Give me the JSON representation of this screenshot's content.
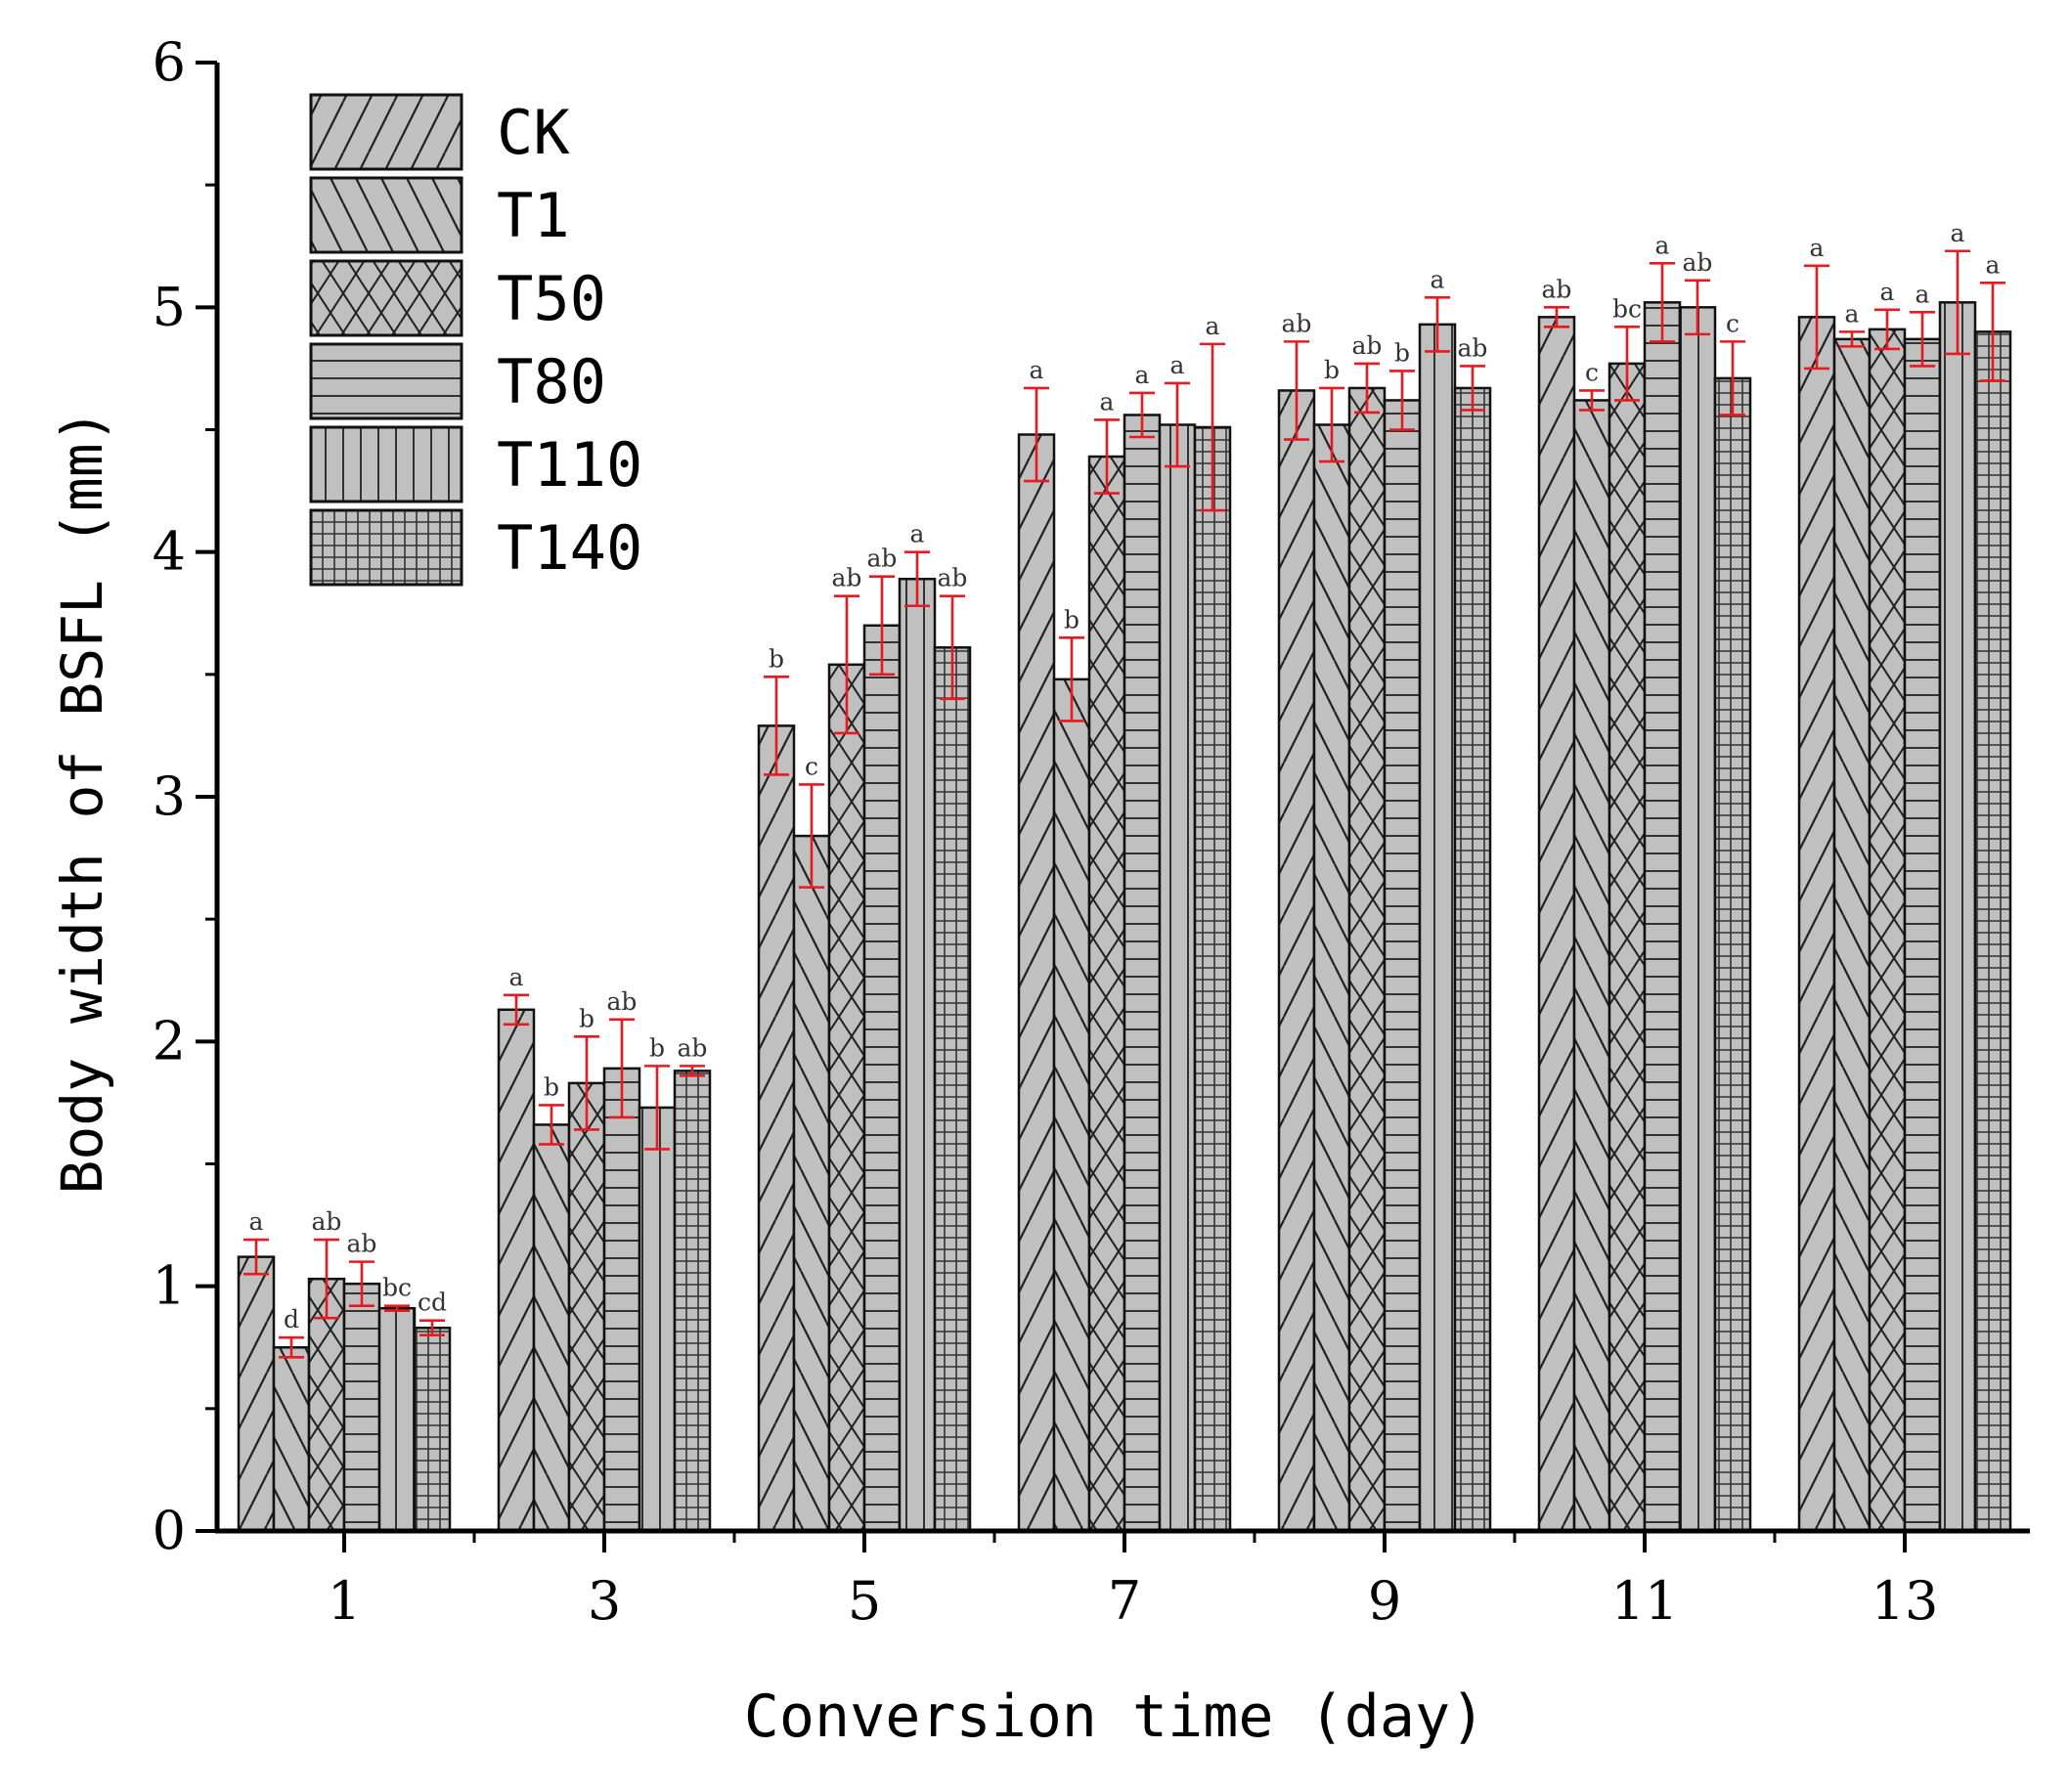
{
  "chart_data": {
    "type": "bar",
    "title": "",
    "xlabel": "Conversion time (day)",
    "ylabel": "Body width of BSFL (mm)",
    "ylim": [
      0,
      6
    ],
    "yticks": [
      "0",
      "1",
      "2",
      "3",
      "4",
      "5",
      "6"
    ],
    "categories": [
      "1",
      "3",
      "5",
      "7",
      "9",
      "11",
      "13"
    ],
    "legend_position": "top-left",
    "colors": {
      "bar_fill": "#c0c0c0",
      "bar_stroke": "#111111",
      "error_bar": "#e8191f",
      "axis": "#000000"
    },
    "series": [
      {
        "name": "CK",
        "pattern": "diag-right",
        "values": [
          1.12,
          2.13,
          3.29,
          4.48,
          4.66,
          4.96,
          4.96
        ],
        "errors": [
          0.07,
          0.06,
          0.2,
          0.19,
          0.2,
          0.04,
          0.21
        ],
        "letters": [
          "a",
          "a",
          "b",
          "a",
          "ab",
          "ab",
          "a"
        ]
      },
      {
        "name": "T1",
        "pattern": "diag-left",
        "values": [
          0.75,
          1.66,
          2.84,
          3.48,
          4.52,
          4.62,
          4.87
        ],
        "errors": [
          0.04,
          0.08,
          0.21,
          0.17,
          0.15,
          0.04,
          0.03
        ],
        "letters": [
          "d",
          "b",
          "c",
          "b",
          "b",
          "c",
          "a"
        ]
      },
      {
        "name": "T50",
        "pattern": "cross",
        "values": [
          1.03,
          1.83,
          3.54,
          4.39,
          4.67,
          4.77,
          4.91
        ],
        "errors": [
          0.16,
          0.19,
          0.28,
          0.15,
          0.1,
          0.15,
          0.08
        ],
        "letters": [
          "ab",
          "b",
          "ab",
          "a",
          "ab",
          "bc",
          "a"
        ]
      },
      {
        "name": "T80",
        "pattern": "horizontal",
        "values": [
          1.01,
          1.89,
          3.7,
          4.56,
          4.62,
          5.02,
          4.87
        ],
        "errors": [
          0.09,
          0.2,
          0.2,
          0.09,
          0.12,
          0.16,
          0.11
        ],
        "letters": [
          "ab",
          "ab",
          "ab",
          "a",
          "b",
          "a",
          "a"
        ]
      },
      {
        "name": "T110",
        "pattern": "vertical",
        "values": [
          0.91,
          1.73,
          3.89,
          4.52,
          4.93,
          5.0,
          5.02
        ],
        "errors": [
          0.01,
          0.17,
          0.11,
          0.17,
          0.11,
          0.11,
          0.21
        ],
        "letters": [
          "bc",
          "b",
          "a",
          "a",
          "a",
          "ab",
          "a"
        ]
      },
      {
        "name": "T140",
        "pattern": "grid",
        "values": [
          0.83,
          1.88,
          3.61,
          4.51,
          4.67,
          4.71,
          4.9
        ],
        "errors": [
          0.03,
          0.02,
          0.21,
          0.34,
          0.09,
          0.15,
          0.2
        ],
        "letters": [
          "cd",
          "ab",
          "ab",
          "a",
          "ab",
          "c",
          "a"
        ]
      }
    ]
  }
}
